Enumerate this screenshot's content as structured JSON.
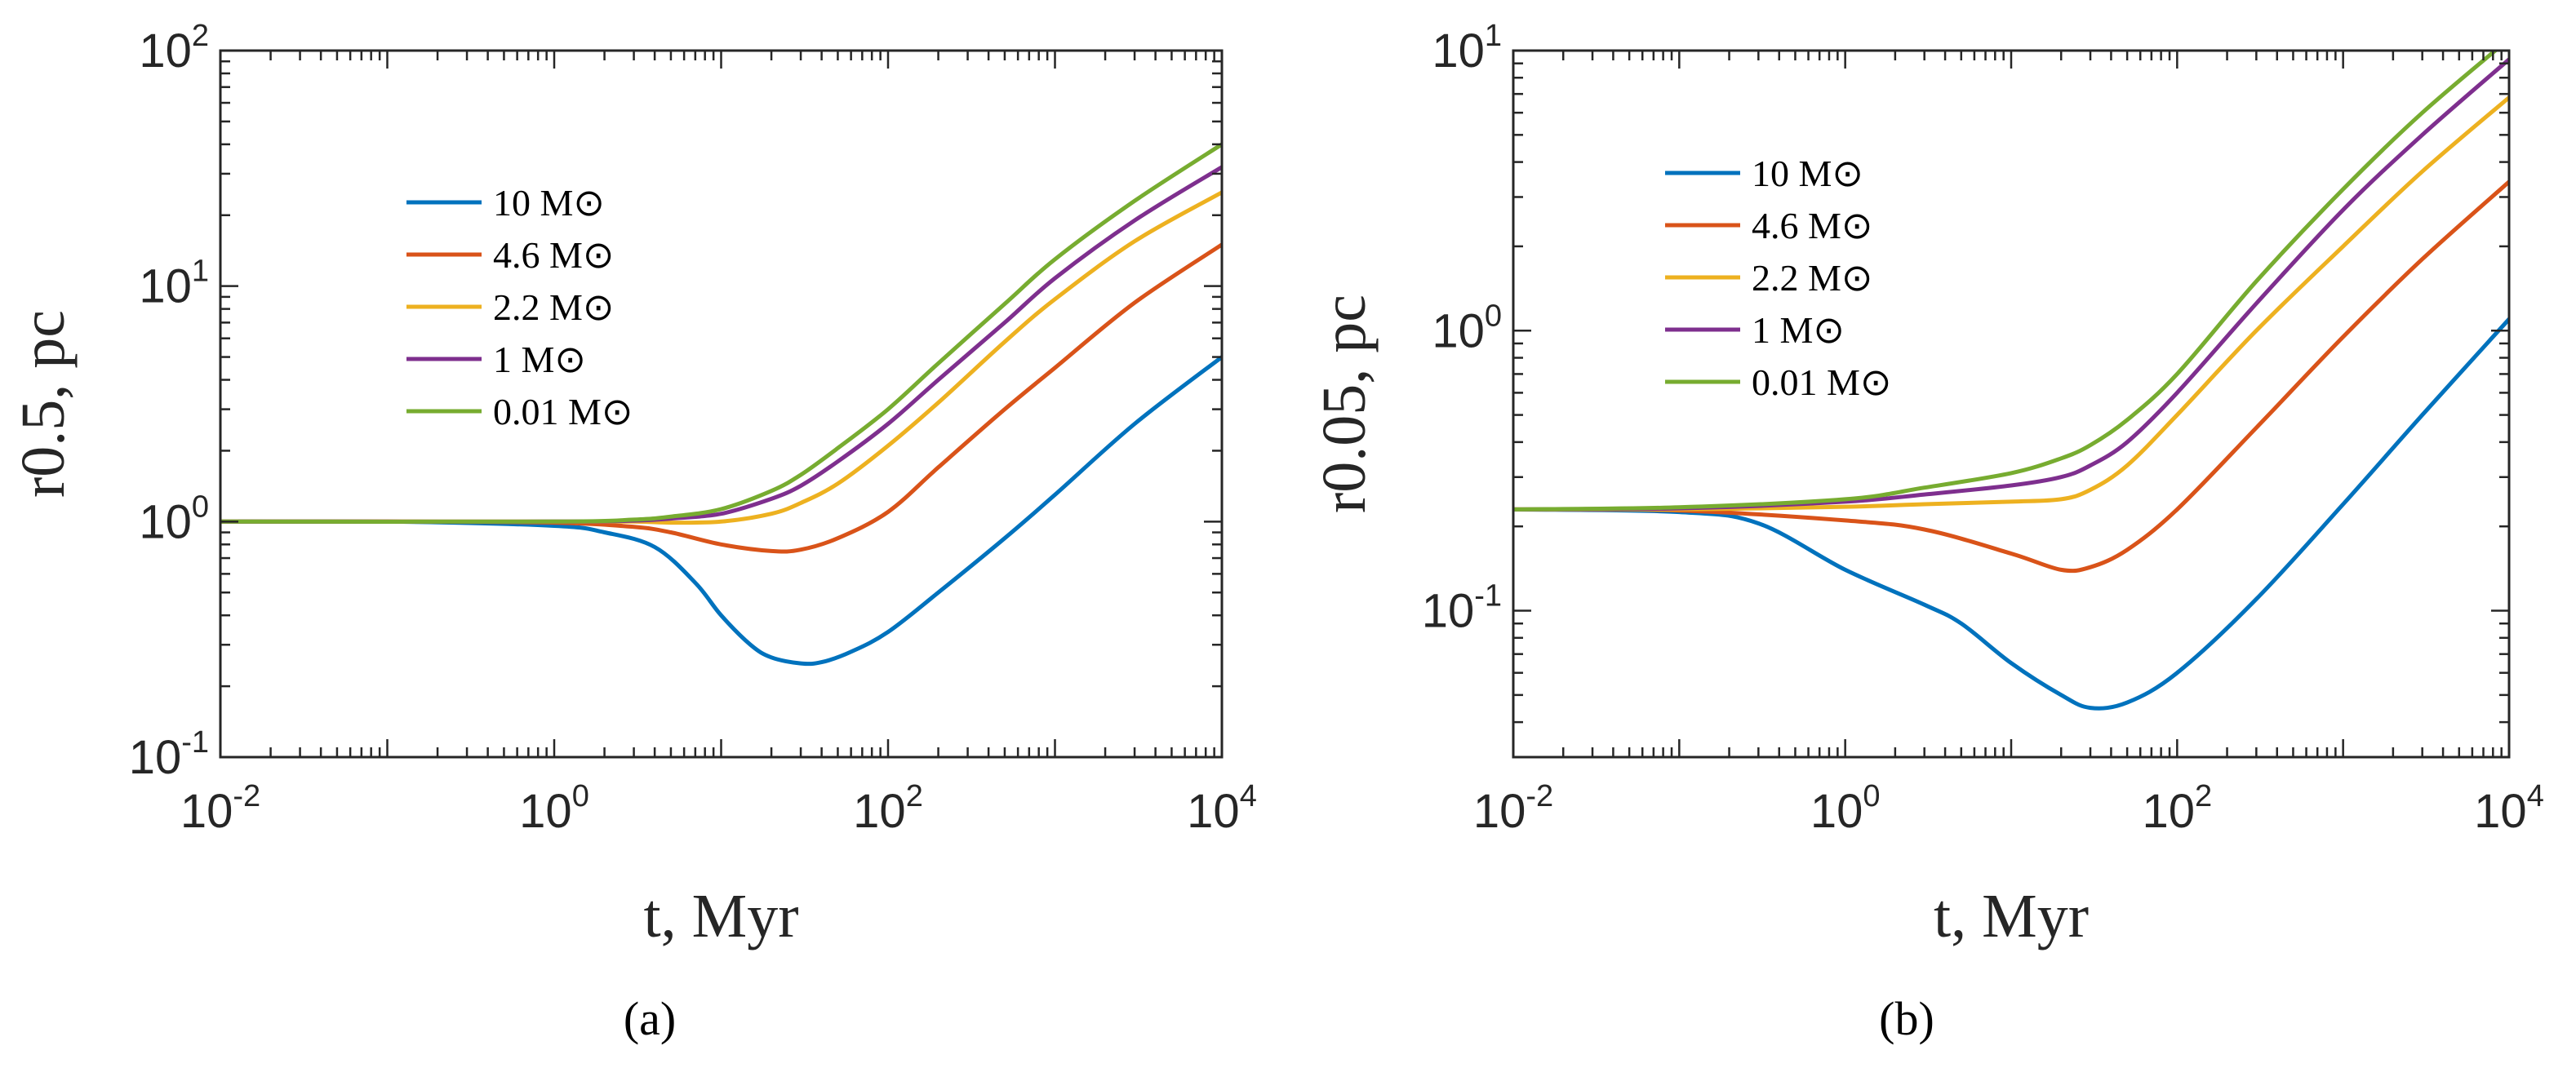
{
  "chart_data": [
    {
      "type": "line",
      "panel_label": "(a)",
      "xlabel": "t, Myr",
      "ylabel": "r0.5, pc",
      "xscale": "log",
      "yscale": "log",
      "xlim": [
        0.01,
        10000
      ],
      "ylim": [
        0.1,
        100
      ],
      "x_ticks": [
        {
          "base": "10",
          "exp": "-2"
        },
        {
          "base": "10",
          "exp": "0"
        },
        {
          "base": "10",
          "exp": "2"
        },
        {
          "base": "10",
          "exp": "4"
        }
      ],
      "y_ticks": [
        {
          "base": "10",
          "exp": "-1"
        },
        {
          "base": "10",
          "exp": "0"
        },
        {
          "base": "10",
          "exp": "1"
        },
        {
          "base": "10",
          "exp": "2"
        }
      ],
      "legend_position": "upper-left",
      "grid": false,
      "series": [
        {
          "name": "10 M⊙",
          "color": "#0072BD",
          "x": [
            0.01,
            0.1,
            1,
            2,
            4,
            7,
            10,
            15,
            20,
            30,
            40,
            60,
            100,
            200,
            500,
            1000,
            3000,
            10000
          ],
          "y": [
            1.0,
            1.0,
            0.96,
            0.9,
            0.78,
            0.55,
            0.4,
            0.3,
            0.265,
            0.25,
            0.253,
            0.28,
            0.34,
            0.5,
            0.85,
            1.3,
            2.6,
            5.0
          ]
        },
        {
          "name": "4.6 M⊙",
          "color": "#D95319",
          "x": [
            0.01,
            0.1,
            1,
            3,
            5,
            10,
            20,
            30,
            50,
            100,
            200,
            500,
            1000,
            3000,
            10000
          ],
          "y": [
            1.0,
            1.0,
            0.99,
            0.95,
            0.9,
            0.8,
            0.75,
            0.76,
            0.85,
            1.1,
            1.7,
            3.0,
            4.5,
            8.5,
            15
          ]
        },
        {
          "name": "2.2 M⊙",
          "color": "#EDB120",
          "x": [
            0.01,
            1,
            3,
            5,
            10,
            20,
            30,
            50,
            100,
            200,
            500,
            1000,
            3000,
            10000
          ],
          "y": [
            1.0,
            1.0,
            1.0,
            0.99,
            1.0,
            1.08,
            1.2,
            1.45,
            2.1,
            3.2,
            5.8,
            8.8,
            15.5,
            25
          ]
        },
        {
          "name": "1 M⊙",
          "color": "#7E2F8E",
          "x": [
            0.01,
            1,
            3,
            5,
            10,
            20,
            30,
            50,
            100,
            200,
            500,
            1000,
            3000,
            10000
          ],
          "y": [
            1.0,
            1.0,
            1.01,
            1.03,
            1.08,
            1.25,
            1.42,
            1.8,
            2.6,
            4.0,
            7.0,
            10.8,
            19,
            32
          ]
        },
        {
          "name": "0.01 M⊙",
          "color": "#77AC30",
          "x": [
            0.01,
            1,
            3,
            5,
            10,
            20,
            30,
            50,
            100,
            200,
            500,
            1000,
            3000,
            10000
          ],
          "y": [
            1.0,
            1.0,
            1.02,
            1.05,
            1.13,
            1.35,
            1.58,
            2.05,
            3.0,
            4.7,
            8.4,
            13,
            23,
            40
          ]
        }
      ]
    },
    {
      "type": "line",
      "panel_label": "(b)",
      "xlabel": "t, Myr",
      "ylabel": "r0.05, pc",
      "xscale": "log",
      "yscale": "log",
      "xlim": [
        0.01,
        10000
      ],
      "ylim": [
        0.03,
        10
      ],
      "x_ticks": [
        {
          "base": "10",
          "exp": "-2"
        },
        {
          "base": "10",
          "exp": "0"
        },
        {
          "base": "10",
          "exp": "2"
        },
        {
          "base": "10",
          "exp": "4"
        }
      ],
      "y_ticks": [
        {
          "base": "10",
          "exp": "-1"
        },
        {
          "base": "10",
          "exp": "0"
        },
        {
          "base": "10",
          "exp": "1"
        }
      ],
      "legend_position": "upper-left",
      "grid": false,
      "series": [
        {
          "name": "10 M⊙",
          "color": "#0072BD",
          "x": [
            0.01,
            0.1,
            0.3,
            1,
            3,
            5,
            10,
            20,
            30,
            50,
            100,
            300,
            1000,
            3000,
            10000
          ],
          "y": [
            0.23,
            0.225,
            0.205,
            0.14,
            0.105,
            0.09,
            0.065,
            0.05,
            0.045,
            0.047,
            0.06,
            0.11,
            0.24,
            0.5,
            1.1
          ]
        },
        {
          "name": "4.6 M⊙",
          "color": "#D95319",
          "x": [
            0.01,
            0.1,
            1,
            3,
            10,
            20,
            30,
            50,
            100,
            300,
            1000,
            3000,
            10000
          ],
          "y": [
            0.23,
            0.228,
            0.21,
            0.195,
            0.16,
            0.14,
            0.143,
            0.165,
            0.23,
            0.45,
            0.95,
            1.8,
            3.4
          ]
        },
        {
          "name": "2.2 M⊙",
          "color": "#EDB120",
          "x": [
            0.01,
            0.1,
            1,
            3,
            10,
            20,
            30,
            50,
            100,
            300,
            1000,
            3000,
            10000
          ],
          "y": [
            0.23,
            0.23,
            0.235,
            0.24,
            0.245,
            0.25,
            0.27,
            0.33,
            0.5,
            1.0,
            2.0,
            3.7,
            6.8
          ]
        },
        {
          "name": "1 M⊙",
          "color": "#7E2F8E",
          "x": [
            0.01,
            0.1,
            1,
            3,
            10,
            20,
            30,
            50,
            100,
            300,
            1000,
            3000,
            10000
          ],
          "y": [
            0.23,
            0.232,
            0.245,
            0.26,
            0.28,
            0.3,
            0.33,
            0.4,
            0.6,
            1.25,
            2.7,
            5.0,
            9.3
          ]
        },
        {
          "name": "0.01 M⊙",
          "color": "#77AC30",
          "x": [
            0.01,
            0.1,
            1,
            3,
            10,
            20,
            30,
            50,
            100,
            300,
            1000,
            3000,
            10000
          ],
          "y": [
            0.23,
            0.234,
            0.25,
            0.275,
            0.31,
            0.35,
            0.39,
            0.48,
            0.7,
            1.5,
            3.2,
            6.0,
            11
          ]
        }
      ]
    }
  ]
}
